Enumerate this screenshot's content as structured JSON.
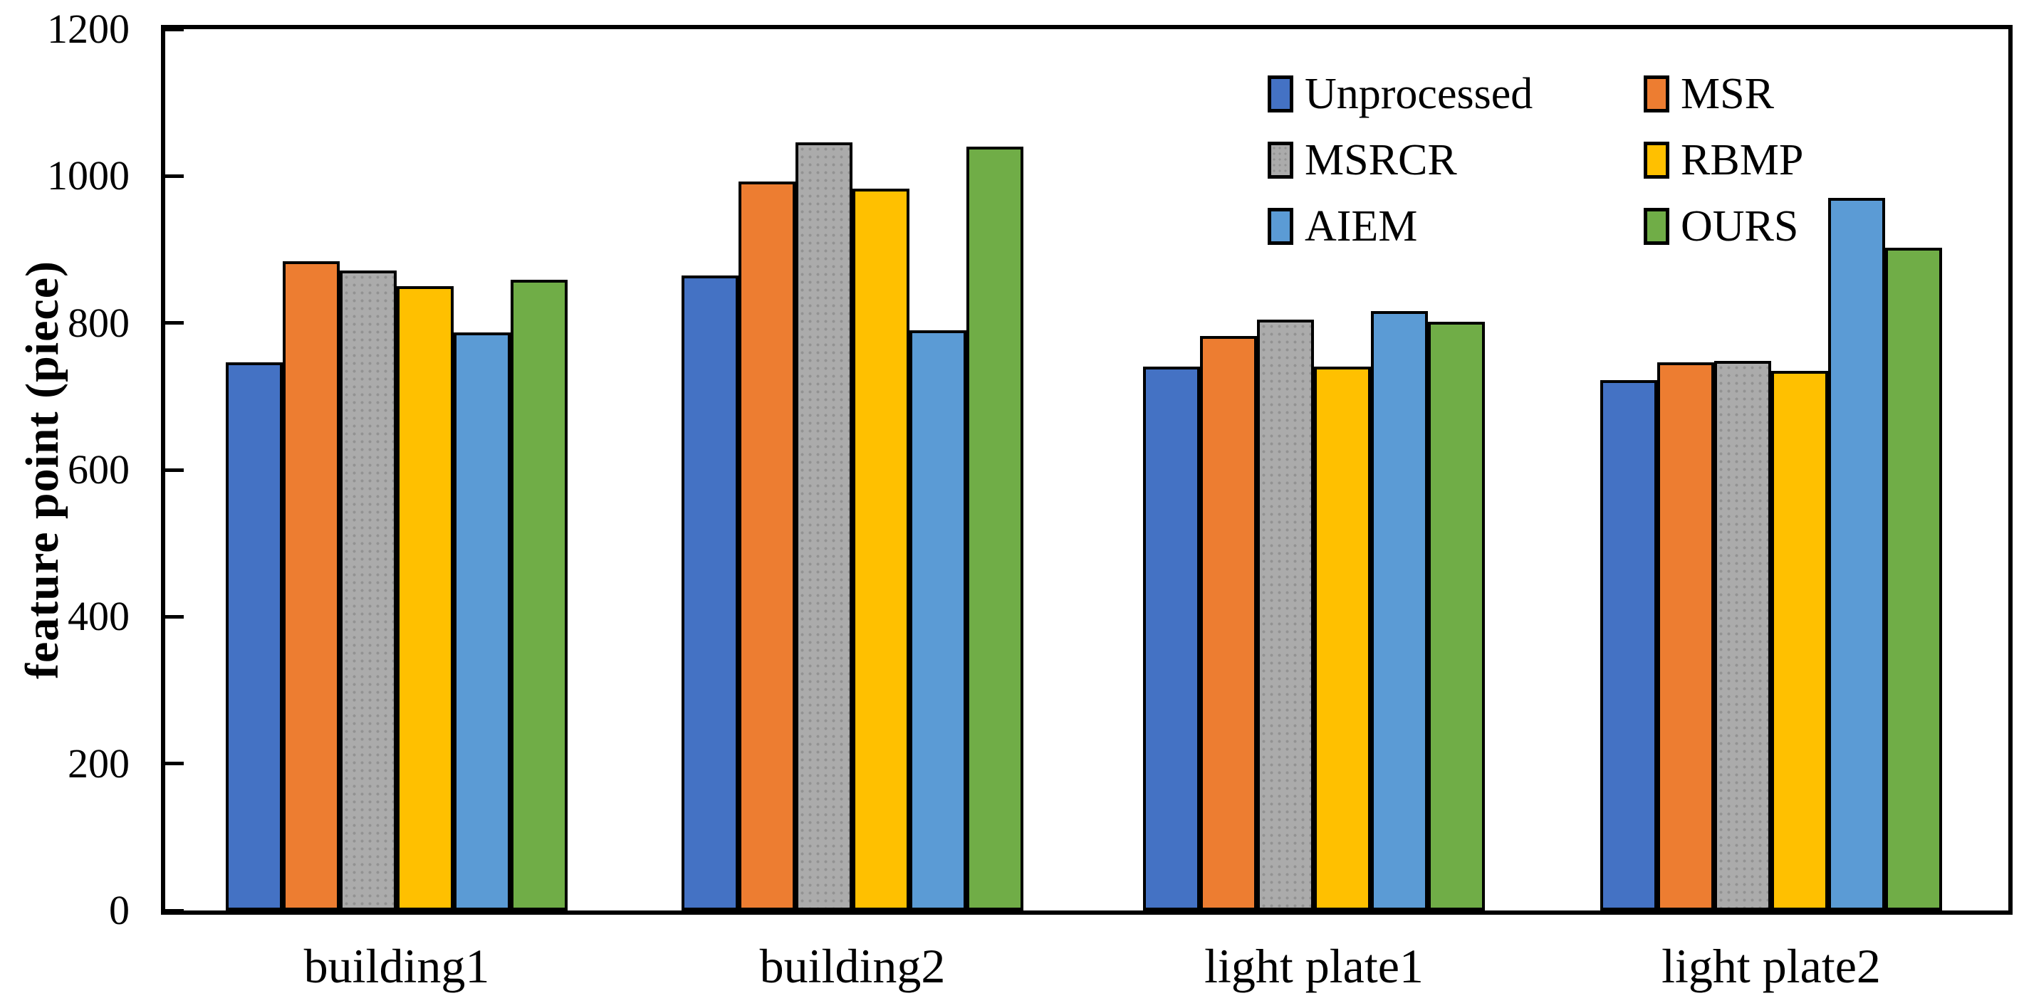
{
  "figure": {
    "background": "#ffffff",
    "frame_color": "#000000"
  },
  "chart_data": {
    "type": "bar",
    "title": "",
    "xlabel": "",
    "ylabel": "feature point (piece)",
    "ylim": [
      0,
      1200
    ],
    "yticks": [
      "0",
      "200",
      "400",
      "600",
      "800",
      "1000",
      "1200"
    ],
    "ytick_values": [
      0,
      200,
      400,
      600,
      800,
      1000,
      1200
    ],
    "grid": false,
    "legend_position": "top-right inside plot, two columns, three rows",
    "categories": [
      "building1",
      "building2",
      "light plate1",
      "light plate2"
    ],
    "series": [
      {
        "name": "Unprocessed",
        "color": "#4472C4",
        "pattern": "solid",
        "values": [
          746,
          865,
          741,
          722
        ]
      },
      {
        "name": "MSR",
        "color": "#ED7D31",
        "pattern": "solid",
        "values": [
          884,
          993,
          782,
          746
        ]
      },
      {
        "name": "MSRCR",
        "color": "#ABABAB",
        "pattern": "dotted",
        "values": [
          871,
          1046,
          805,
          748
        ]
      },
      {
        "name": "RBMP",
        "color": "#FFC000",
        "pattern": "solid",
        "values": [
          850,
          983,
          741,
          735
        ]
      },
      {
        "name": "AIEM",
        "color": "#5B9BD5",
        "pattern": "solid",
        "values": [
          787,
          790,
          816,
          970
        ]
      },
      {
        "name": "OURS",
        "color": "#70AD47",
        "pattern": "solid",
        "values": [
          859,
          1040,
          802,
          902
        ]
      }
    ],
    "bar_border_color": "#000000"
  }
}
